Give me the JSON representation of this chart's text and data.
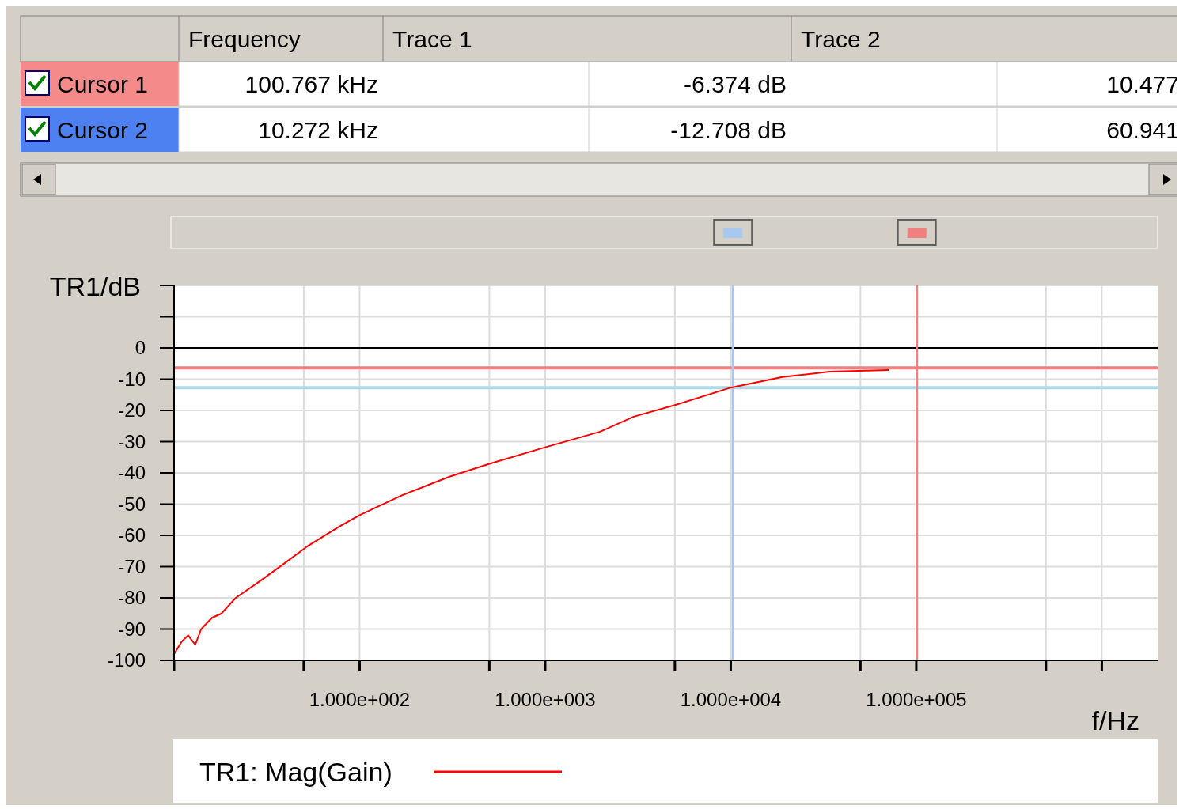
{
  "chart_data": {
    "type": "line",
    "xlabel": "f/Hz",
    "ylabel": "TR1/dB",
    "log": "x",
    "xlim": [
      10,
      2000000
    ],
    "xticks": [
      {
        "value": 10,
        "label": null
      },
      {
        "value": 50,
        "label": null
      },
      {
        "value": 100,
        "label": "1.000e+002"
      },
      {
        "value": 500,
        "label": null
      },
      {
        "value": 1000,
        "label": "1.000e+003"
      },
      {
        "value": 5000,
        "label": null
      },
      {
        "value": 10000,
        "label": "1.000e+004"
      },
      {
        "value": 50000,
        "label": null
      },
      {
        "value": 100000,
        "label": "1.000e+005"
      },
      {
        "value": 500000,
        "label": null
      },
      {
        "value": 1000000,
        "label": null
      }
    ],
    "ylim": [
      -100,
      20
    ],
    "yticks": [
      -100,
      -90,
      -80,
      -70,
      -60,
      -50,
      -40,
      -30,
      -20,
      -10,
      0,
      {
        "value": 10,
        "label": null
      },
      {
        "value": 20,
        "label": null
      }
    ],
    "grid": true,
    "legend": "bottom",
    "line_style": "solid",
    "marker": "none",
    "series": [
      {
        "name": "TR1: Mag(Gain)",
        "color": "#ff0000",
        "x": [
          10,
          11,
          11.9,
          13,
          14,
          16,
          18,
          21.5,
          28.9,
          38.8,
          52,
          77,
          100,
          169,
          305,
          500,
          1000,
          1977,
          3000,
          5000,
          10000,
          19000,
          34000,
          71000
        ],
        "values": [
          -98,
          -94,
          -92,
          -95,
          -90,
          -86.4,
          -85,
          -80,
          -74.7,
          -69.2,
          -63.6,
          -57.3,
          -53.5,
          -47.2,
          -41.2,
          -37.1,
          -31.8,
          -26.8,
          -22,
          -18.3,
          -12.7,
          -9.3,
          -7.6,
          -7.1
        ]
      }
    ],
    "ref_lines": [
      {
        "axis": "y",
        "value": 0,
        "color": "#000000"
      },
      {
        "axis": "y",
        "value": -6.374,
        "color": "#f08080"
      },
      {
        "axis": "y",
        "value": -12.708,
        "color": "#add8e6"
      },
      {
        "axis": "x",
        "value": 100767,
        "color": "#f08080"
      },
      {
        "axis": "x",
        "value": 10272,
        "color": "#a8c8f0"
      }
    ],
    "annotations": [
      "Frequency",
      "Trace 1",
      "Trace 2",
      "Cursor 1",
      "100.767 kHz",
      "-6.374 dB",
      "10.477",
      "Cursor 2",
      "10.272 kHz",
      "-12.708 dB",
      "60.941"
    ]
  }
}
